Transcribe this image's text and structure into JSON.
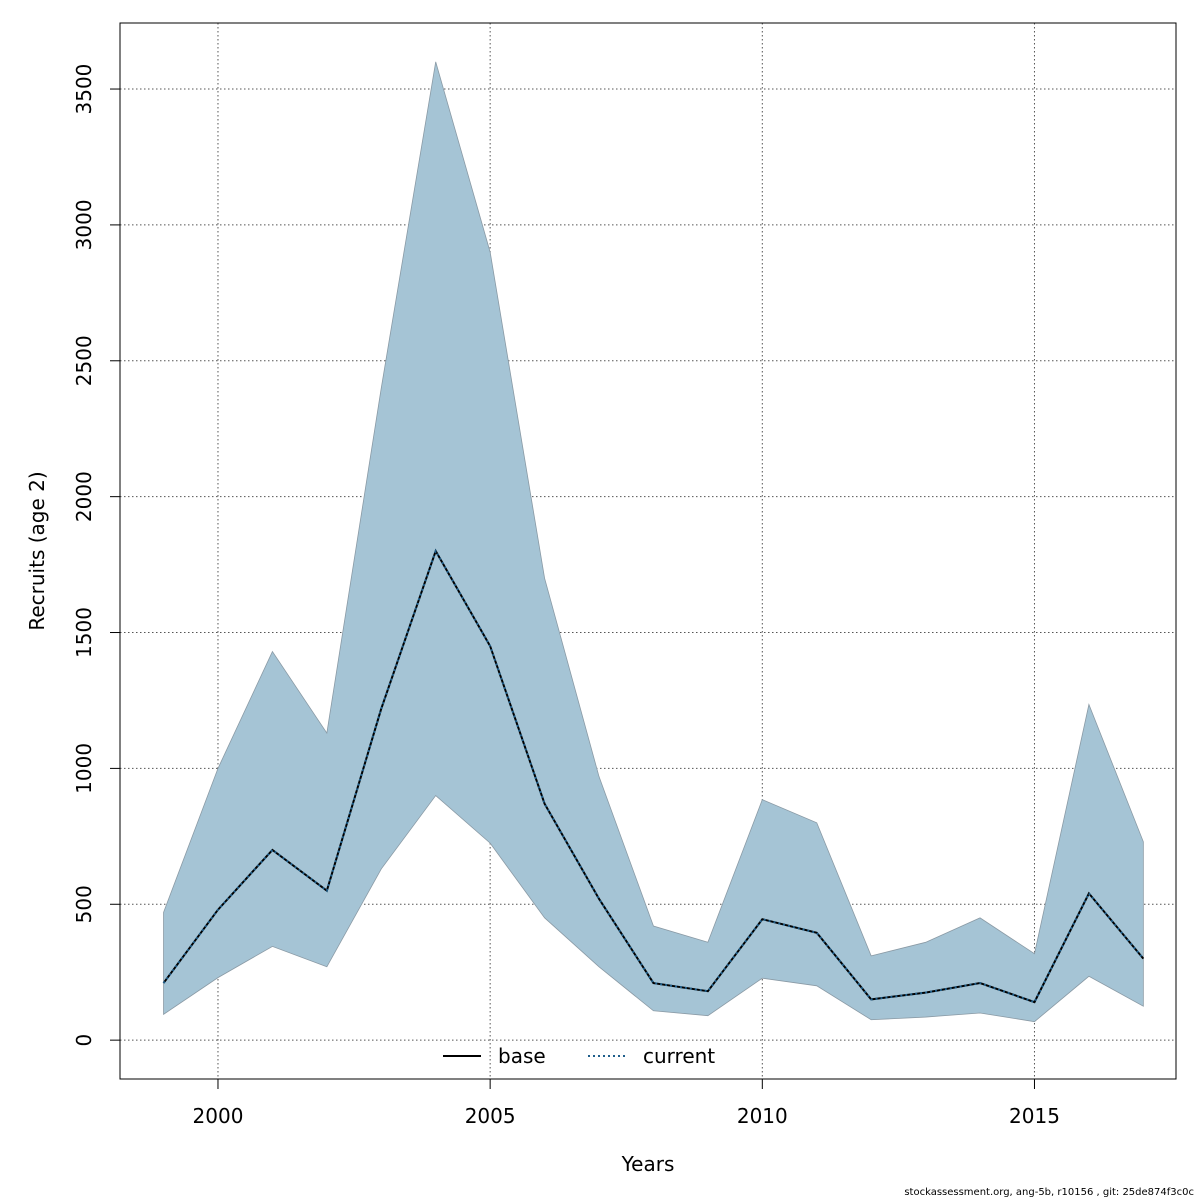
{
  "chart_data": {
    "type": "area",
    "xlabel": "Years",
    "ylabel": "Recruits (age 2)",
    "xlim": [
      1998.2,
      2017.6
    ],
    "ylim": [
      -143,
      3743
    ],
    "x_ticks": [
      2000,
      2005,
      2010,
      2015
    ],
    "y_ticks": [
      0,
      500,
      1000,
      1500,
      2000,
      2500,
      3000,
      3500
    ],
    "grid": true,
    "legend_position": "bottom-center",
    "x": [
      1999,
      2000,
      2001,
      2002,
      2003,
      2004,
      2005,
      2006,
      2007,
      2008,
      2009,
      2010,
      2011,
      2012,
      2013,
      2014,
      2015,
      2016,
      2017
    ],
    "band": {
      "lower": [
        95,
        230,
        345,
        270,
        630,
        900,
        725,
        450,
        270,
        108,
        90,
        228,
        200,
        75,
        85,
        100,
        68,
        235,
        125
      ],
      "upper": [
        470,
        1000,
        1430,
        1130,
        2400,
        3600,
        2900,
        1700,
        970,
        420,
        360,
        885,
        800,
        310,
        360,
        450,
        318,
        1235,
        730
      ],
      "color": "#a5c4d5"
    },
    "series": [
      {
        "name": "base",
        "style": "solid",
        "color": "#000000",
        "values": [
          210,
          480,
          700,
          550,
          1220,
          1800,
          1450,
          870,
          520,
          210,
          180,
          445,
          395,
          150,
          175,
          210,
          140,
          540,
          300
        ]
      },
      {
        "name": "current",
        "style": "dotted",
        "color": "#1f5f8b",
        "values": [
          210,
          480,
          700,
          550,
          1220,
          1800,
          1450,
          870,
          520,
          210,
          180,
          445,
          395,
          150,
          175,
          210,
          140,
          540,
          300
        ]
      }
    ]
  },
  "footer_text": "stockassessment.org, ang-5b, r10156 , git: 25de874f3c0c"
}
